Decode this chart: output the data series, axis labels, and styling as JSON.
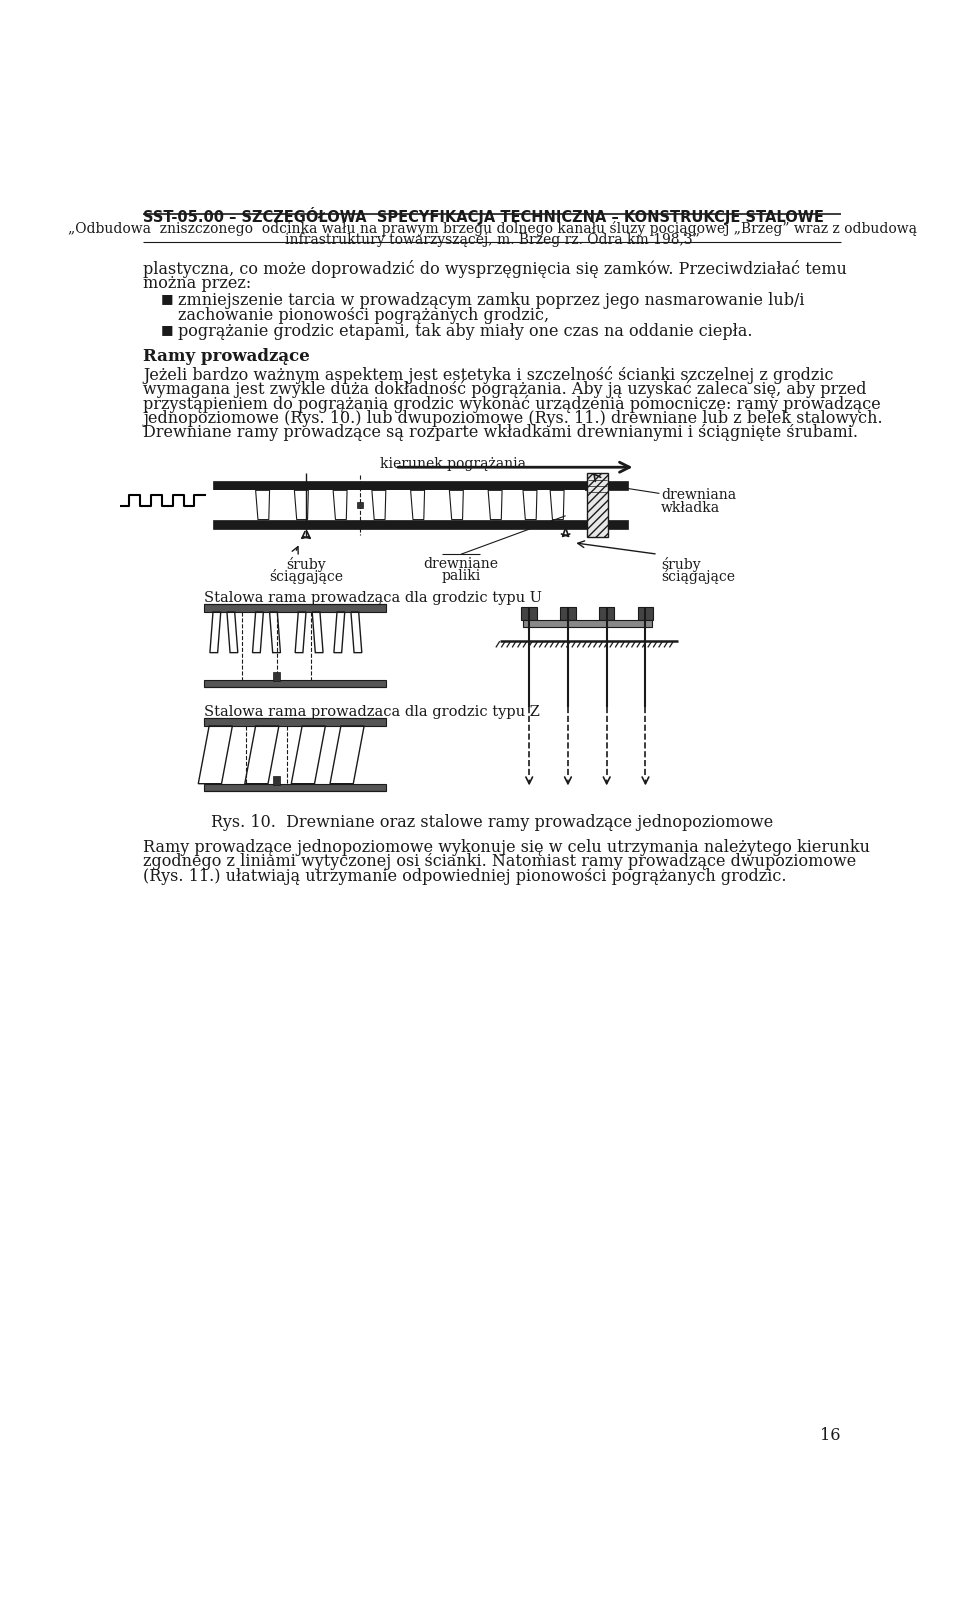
{
  "bg_color": "#ffffff",
  "header_title": "SST-05.00 – SZCZEGÓŁOWA  SPECYFIKACJA TECHNICZNA – KONSTRUKCJE STALOWE",
  "header_sub1": "„Odbudowa  zniszczonego  odcinka wału na prawym brzegu dolnego kanału śluzy pociągowej „Brzeg” wraz z odbudową",
  "header_sub2": "infrastruktury towarzyszącej, m. Brzeg rz. Odra km 198,3”",
  "page_number": "16",
  "para_intro1": "plastyczna, co może doprowadzić do wysprzęgnięcia się zamków. Przeciwdziałać temu",
  "para_intro2": "można przez:",
  "bullet1_line1": "zmniejszenie tarcia w prowadzącym zamku poprzez jego nasmarowanie lub/i",
  "bullet1_line2": "zachowanie pionowości pogrążanych grodzic,",
  "bullet2": "pogrążanie grodzic etapami, tak aby miały one czas na oddanie ciepła.",
  "section_heading": "Ramy prowadzące",
  "para1_line1": "Jeżeli bardzo ważnym aspektem jest estetyka i szczelność ścianki szczelnej z grodzic",
  "para1_line2": "wymagana jest zwykle duża dokładność pogrążania. Aby ją uzyskać zaleca się, aby przed",
  "para1_line3": "przystąpieniem do pogrążania grodzic wykonać urządzenia pomocnicze: ramy prowadzące",
  "para1_line4": "jednopoziomowe (Rys. 10.) lub dwupoziomowe (Rys. 11.) drewniane lub z belek stalowych.",
  "para1_line5": "Drewniane ramy prowadzące są rozparte wkładkami drewnianymi i ściągnięte śrubami.",
  "fig_caption": "Rys. 10.  Drewniane oraz stalowe ramy prowadzące jednopoziomowe",
  "label_kierunek": "kierunek pogrążania",
  "label_sruby_left1": "śruby",
  "label_sruby_left2": "ściągające",
  "label_drewniane1": "drewniane",
  "label_drewniane2": "paliki",
  "label_drewniana1": "drewniana",
  "label_drewniana2": "wkładka",
  "label_sruby_right1": "śruby",
  "label_sruby_right2": "ściągające",
  "label_stalowa_U": "Stalowa rama prowadząca dla grodzic typu U",
  "label_stalowa_Z": "Stalowa rama prowadzaca dla grodzic typu Z",
  "para2_line1": "Ramy prowadzące jednopoziomowe wykonuje się w celu utrzymania należytego kierunku",
  "para2_line2": "zgodnego z liniami wytyczonej osi ścianki. Natomiast ramy prowadzące dwupoziomowe",
  "para2_line3": "(Rys. 11.) ułatwiają utrzymanie odpowiedniej pionowości pogrążanych grodzic."
}
